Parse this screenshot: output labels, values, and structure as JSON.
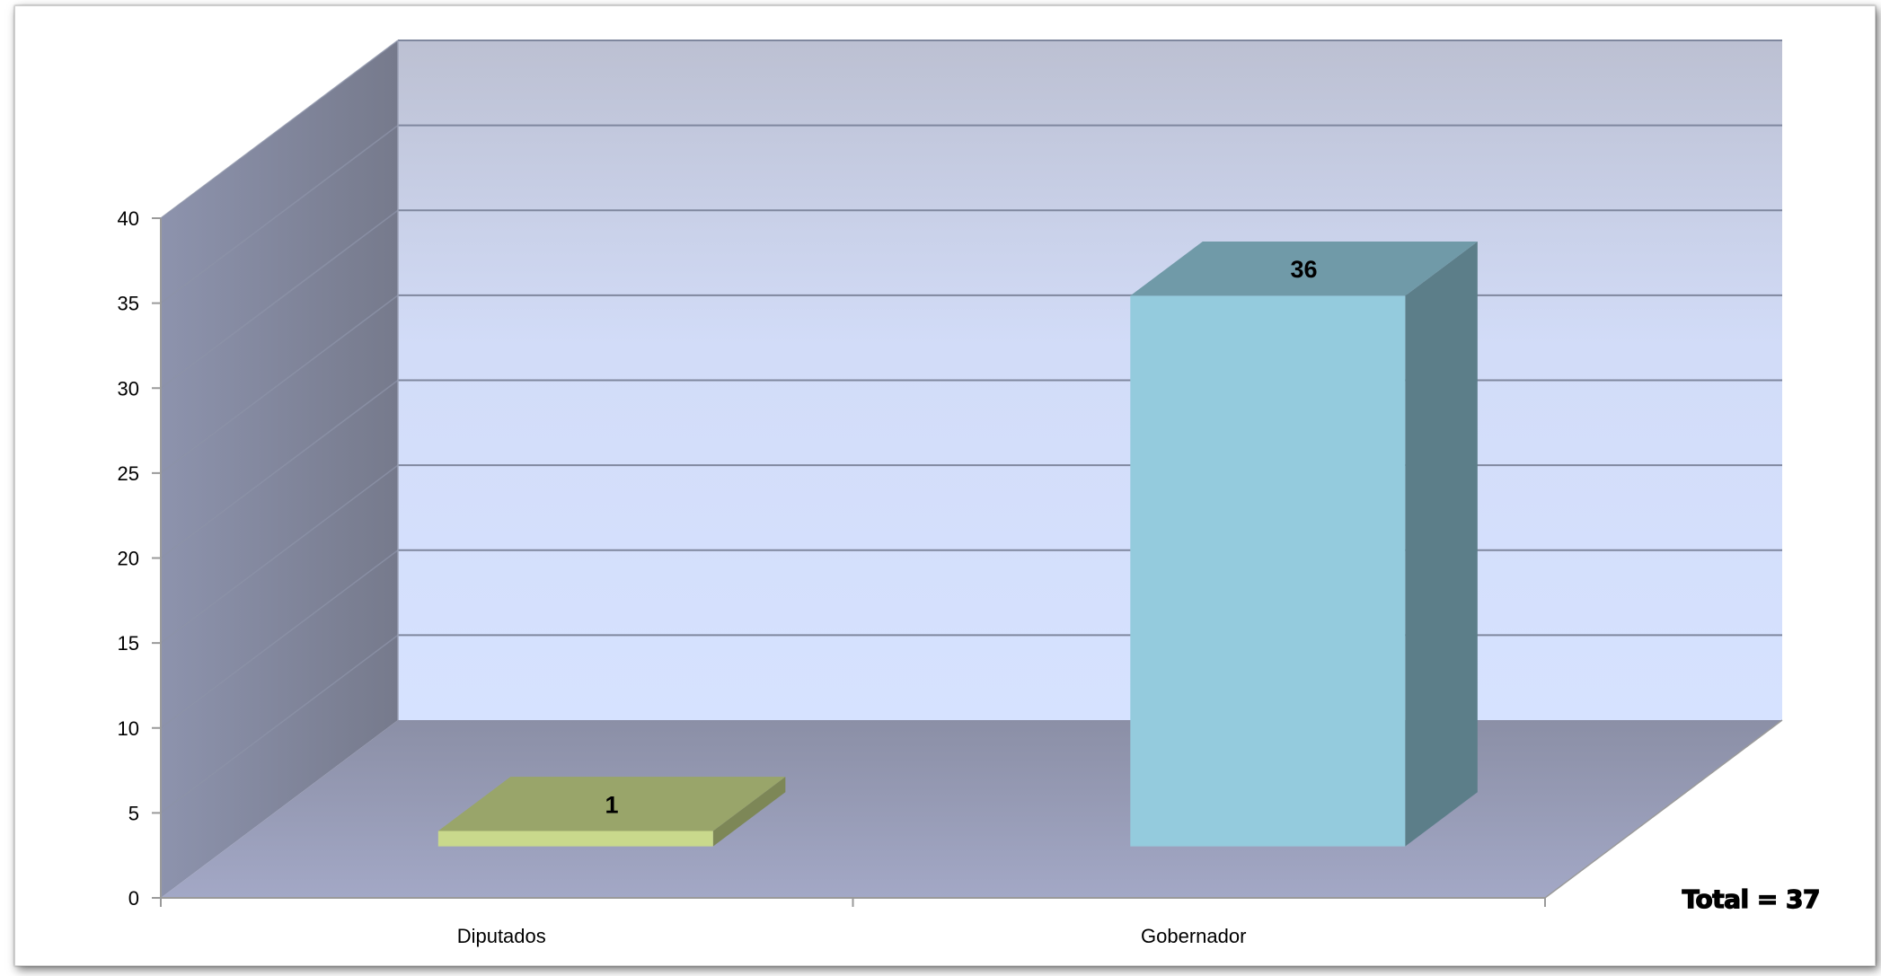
{
  "chart_data": {
    "type": "bar",
    "categories": [
      "Diputados",
      "Gobernador"
    ],
    "values": [
      1,
      36
    ],
    "data_labels": [
      "1",
      "36"
    ],
    "series_colors": [
      "#c9d98c",
      "#94cbdd"
    ],
    "ylim": [
      0,
      40
    ],
    "yticks": [
      0,
      5,
      10,
      15,
      20,
      25,
      30,
      35,
      40
    ],
    "ytick_labels": [
      "0",
      "5",
      "10",
      "15",
      "20",
      "25",
      "30",
      "35",
      "40"
    ],
    "grid": true,
    "legend": "none",
    "style": "3d-column"
  },
  "annotation": {
    "total_text": "Total = 37"
  }
}
